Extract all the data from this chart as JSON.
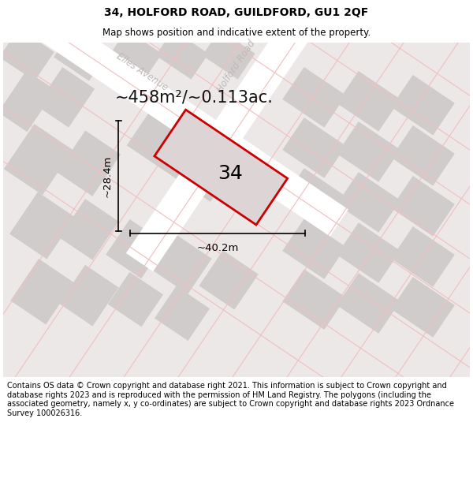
{
  "title": "34, HOLFORD ROAD, GUILDFORD, GU1 2QF",
  "subtitle": "Map shows position and indicative extent of the property.",
  "footer": "Contains OS data © Crown copyright and database right 2021. This information is subject to Crown copyright and database rights 2023 and is reproduced with the permission of HM Land Registry. The polygons (including the associated geometry, namely x, y co-ordinates) are subject to Crown copyright and database rights 2023 Ordnance Survey 100026316.",
  "area_label": "~458m²/~0.113ac.",
  "width_label": "~40.2m",
  "height_label": "~28.4m",
  "plot_number": "34",
  "map_bg": "#ede8e8",
  "road_color": "#ffffff",
  "block_color": "#d0cccc",
  "pink_line_color": "#f2c0c0",
  "plot_outline_color": "#cc0000",
  "plot_fill_color": "#ddd5d5",
  "title_fontsize": 10,
  "subtitle_fontsize": 8.5,
  "footer_fontsize": 7.0,
  "area_fontsize": 15,
  "plot_num_fontsize": 18,
  "dim_fontsize": 9.5,
  "street_fontsize": 8.5
}
